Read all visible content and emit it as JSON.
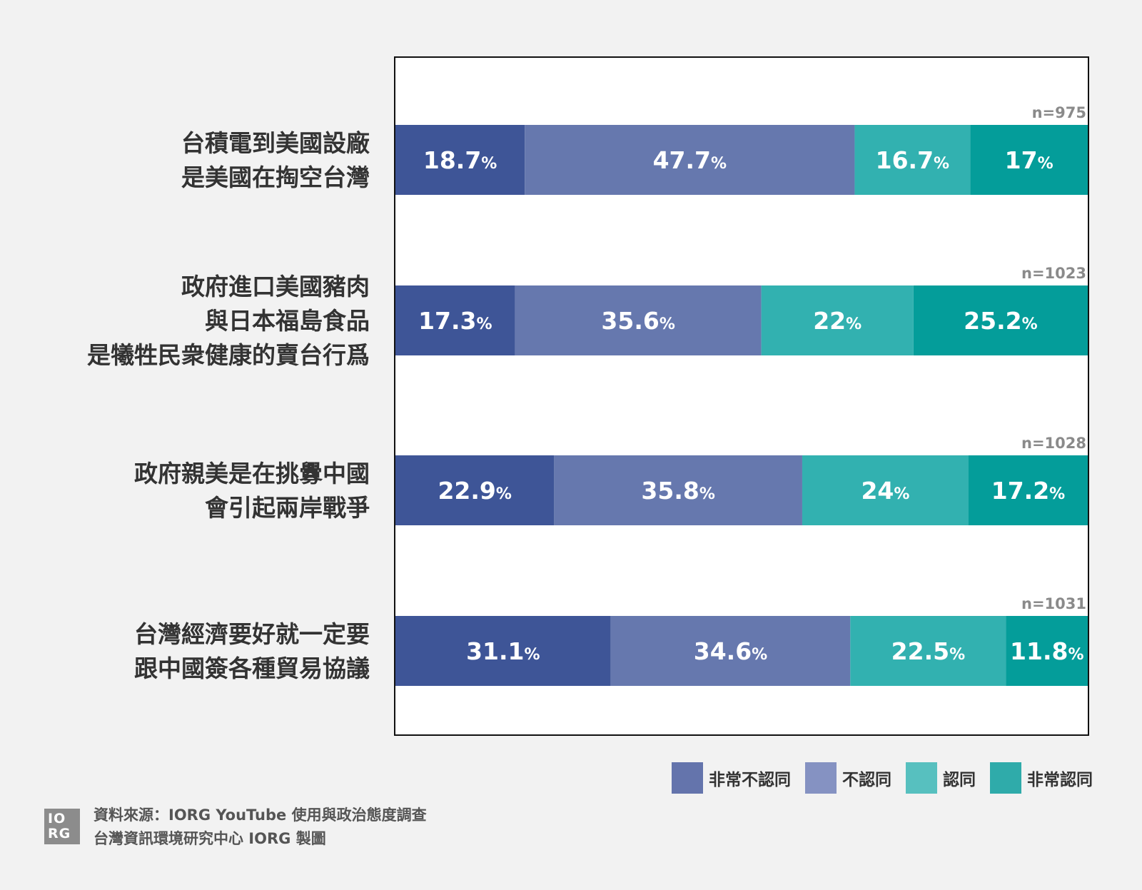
{
  "chart_data": {
    "type": "bar",
    "orientation": "horizontal-stacked-100",
    "categories": [
      [
        "台積電到美國設廠",
        "是美國在掏空台灣"
      ],
      [
        "政府進口美國豬肉",
        "與日本福島食品",
        "是犧牲民衆健康的賣台行爲"
      ],
      [
        "政府親美是在挑釁中國",
        "會引起兩岸戰爭"
      ],
      [
        "台灣經濟要好就一定要",
        "跟中國簽各種貿易協議"
      ]
    ],
    "sample_sizes": [
      "n=975",
      "n=1023",
      "n=1028",
      "n=1031"
    ],
    "series": [
      {
        "name": "非常不認同",
        "color": "#3e5597",
        "values": [
          18.7,
          17.3,
          22.9,
          31.1
        ],
        "labels": [
          "18.7",
          "17.3",
          "22.9",
          "31.1"
        ]
      },
      {
        "name": "不認同",
        "color": "#6678ae",
        "values": [
          47.7,
          35.6,
          35.8,
          34.6
        ],
        "labels": [
          "47.7",
          "35.6",
          "35.8",
          "34.6"
        ]
      },
      {
        "name": "認同",
        "color": "#32b1b0",
        "values": [
          16.7,
          22,
          24,
          22.5
        ],
        "labels": [
          "16.7",
          "22",
          "24",
          "22.5"
        ]
      },
      {
        "name": "非常認同",
        "color": "#049d9a",
        "values": [
          17,
          25.2,
          17.2,
          11.8
        ],
        "labels": [
          "17",
          "25.2",
          "17.2",
          "11.8"
        ]
      }
    ],
    "unit": "%",
    "legend_position": "bottom-right",
    "legend_colors": [
      "#6474ac",
      "#8592c2",
      "#57c0bf",
      "#2fabaa"
    ],
    "grid": false
  },
  "footer": {
    "logo_text": "IO RG",
    "source_line1": "資料來源：IORG YouTube 使用與政治態度調查",
    "source_line2": "台灣資訊環境研究中心 IORG 製圖"
  }
}
